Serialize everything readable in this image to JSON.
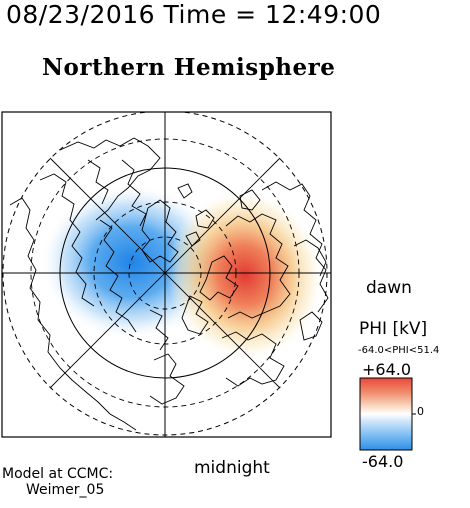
{
  "header": {
    "timestamp": "08/23/2016 Time = 12:49:00",
    "hemisphere": "Northern Hemisphere"
  },
  "map": {
    "dawn_label": "dawn",
    "midnight_label": "midnight"
  },
  "colorbar": {
    "title": "PHI [kV]",
    "range_text": "-64.0<PHI<51.4",
    "max_label": "+64.0",
    "min_label": "-64.0",
    "zero_label": "0",
    "max_value": 64.0,
    "min_value": -64.0,
    "cell_extremes": {
      "min": -64.0,
      "max": 51.4
    }
  },
  "footer": {
    "model_line1": "Model at CCMC:",
    "model_line2": "Weimer_05"
  },
  "colors": {
    "negative": "#2f8ee8",
    "positive": "#e8483a",
    "neutral": "#ffffff",
    "frame": "#000000"
  }
}
